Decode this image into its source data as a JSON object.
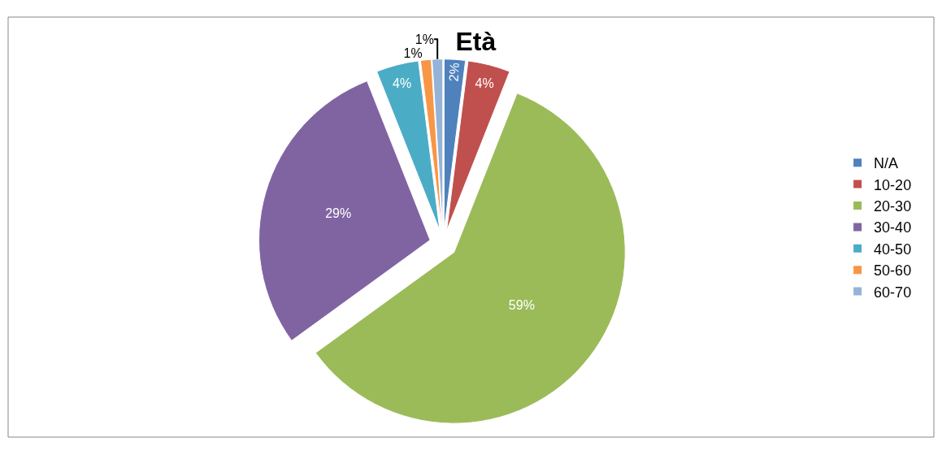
{
  "chart_data": {
    "type": "pie",
    "title": "Età",
    "categories": [
      "N/A",
      "10-20",
      "20-30",
      "30-40",
      "40-50",
      "50-60",
      "60-70"
    ],
    "values": [
      2,
      4,
      59,
      29,
      4,
      1,
      1
    ],
    "value_labels": [
      "2%",
      "4%",
      "59%",
      "29%",
      "4%",
      "1%",
      "1%"
    ],
    "colors": [
      "#4f81bd",
      "#c0504d",
      "#9bbb59",
      "#8064a2",
      "#4bacc6",
      "#f79646",
      "#95b3d7"
    ],
    "legend": "right"
  }
}
